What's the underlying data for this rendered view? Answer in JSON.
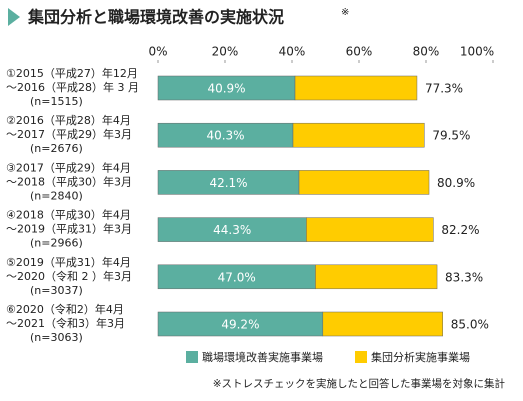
{
  "chart_data": {
    "type": "stacked-barh",
    "title": "集団分析と職場環境改善の実施状況",
    "title_mark": "※",
    "categories": [
      [
        "①2015（平成27）年12月",
        "～2016（平成28）年 3 月",
        "(n=1515)"
      ],
      [
        "②2016（平成28）年4月",
        "～2017（平成29）年3月",
        "(n=2676)"
      ],
      [
        "③2017（平成29）年4月",
        "～2018（平成30）年3月",
        "(n=2840)"
      ],
      [
        "④2018（平成30）年4月",
        "～2019（平成31）年3月",
        "(n=2966)"
      ],
      [
        "⑤2019（平成31）年4月",
        "～2020（令和 2 ）年3月",
        "(n=3037)"
      ],
      [
        "⑥2020（令和2）年4月",
        "～2021（令和3）年3月",
        "(n=3063)"
      ]
    ],
    "series": [
      {
        "name": "職場環境改善実施事業場",
        "color": "#5bafa0",
        "values": [
          40.9,
          40.3,
          42.1,
          44.3,
          47.0,
          49.2
        ],
        "value_labels": [
          "40.9%",
          "40.3%",
          "42.1%",
          "44.3%",
          "47.0%",
          "49.2%"
        ]
      },
      {
        "name": "集団分析実施事業場",
        "color": "#ffcc00",
        "values": [
          36.4,
          39.2,
          38.8,
          37.9,
          36.3,
          35.8
        ]
      }
    ],
    "totals": {
      "values": [
        77.3,
        79.5,
        80.9,
        82.2,
        83.3,
        85.0
      ],
      "value_labels": [
        "77.3%",
        "79.5%",
        "80.9%",
        "82.2%",
        "83.3%",
        "85.0%"
      ]
    },
    "xlim": [
      0,
      100
    ],
    "xticks": [
      {
        "value": 0,
        "label": "0%"
      },
      {
        "value": 20,
        "label": "20%"
      },
      {
        "value": 40,
        "label": "40%"
      },
      {
        "value": 60,
        "label": "60%"
      },
      {
        "value": 80,
        "label": "80%"
      },
      {
        "value": 100,
        "label": "100%"
      }
    ],
    "grid": false,
    "legend": "bottom",
    "footnote": "※ストレスチェックを実施したと回答した事業場を対象に集計"
  }
}
